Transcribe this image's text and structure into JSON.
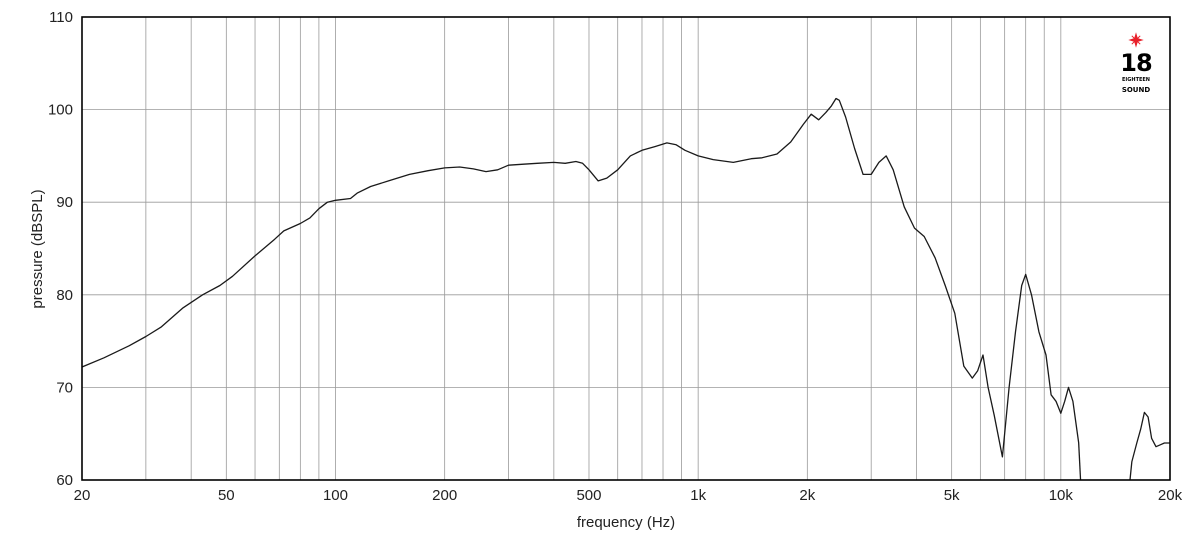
{
  "chart_data": {
    "type": "line",
    "xscale": "log",
    "xlim": [
      20,
      20000
    ],
    "ylim": [
      60,
      110
    ],
    "xlabel": "frequency (Hz)",
    "ylabel": "pressure (dBSPL)",
    "grid": true,
    "x_tick_values": [
      20,
      50,
      100,
      200,
      500,
      1000,
      2000,
      5000,
      10000,
      20000
    ],
    "x_tick_labels": [
      "20",
      "50",
      "100",
      "200",
      "500",
      "1k",
      "2k",
      "5k",
      "10k",
      "20k"
    ],
    "y_tick_values": [
      60,
      70,
      80,
      90,
      100,
      110
    ],
    "y_tick_labels": [
      "60",
      "70",
      "80",
      "90",
      "100",
      "110"
    ],
    "series": [
      {
        "color": "#1a1a1a",
        "x": [
          20,
          23,
          27,
          30,
          33,
          38,
          43,
          48,
          52,
          60,
          68,
          72,
          80,
          85,
          90,
          95,
          100,
          110,
          115,
          125,
          140,
          160,
          180,
          200,
          220,
          240,
          260,
          280,
          300,
          330,
          360,
          400,
          430,
          460,
          480,
          500,
          530,
          560,
          600,
          650,
          700,
          760,
          820,
          870,
          920,
          1000,
          1100,
          1250,
          1400,
          1500,
          1650,
          1800,
          1950,
          2050,
          2150,
          2250,
          2330,
          2400,
          2450,
          2550,
          2700,
          2850,
          3000,
          3150,
          3300,
          3450,
          3700,
          3950,
          4200,
          4500,
          4800,
          5100,
          5400,
          5700,
          5900,
          6100,
          6300,
          6550,
          6900,
          7200,
          7500,
          7800,
          8000,
          8300,
          8700,
          9100,
          9400,
          9700,
          10000,
          10250,
          10500,
          10800,
          11200,
          15700,
          16200,
          16600,
          17000,
          17400,
          17800,
          18300,
          18800,
          19300,
          20000
        ],
        "y": [
          72.2,
          73.2,
          74.5,
          75.5,
          76.5,
          78.6,
          80.0,
          81.0,
          82.0,
          84.2,
          86.0,
          86.9,
          87.7,
          88.3,
          89.3,
          90.0,
          90.2,
          90.4,
          91.0,
          91.7,
          92.3,
          93.0,
          93.4,
          93.7,
          93.8,
          93.6,
          93.3,
          93.5,
          94.0,
          94.1,
          94.2,
          94.3,
          94.2,
          94.4,
          94.2,
          93.5,
          92.3,
          92.6,
          93.5,
          95.0,
          95.6,
          96.0,
          96.4,
          96.2,
          95.6,
          95.0,
          94.6,
          94.3,
          94.7,
          94.8,
          95.2,
          96.5,
          98.4,
          99.5,
          98.9,
          99.7,
          100.4,
          101.2,
          101.0,
          99.2,
          95.8,
          93.0,
          93.0,
          94.3,
          95.0,
          93.5,
          89.5,
          87.2,
          86.3,
          84.0,
          81.0,
          78.0,
          72.3,
          71.0,
          71.8,
          73.5,
          70.0,
          67.0,
          62.5,
          70.0,
          76.0,
          81.0,
          82.2,
          80.0,
          76.0,
          73.5,
          69.2,
          68.5,
          67.2,
          68.5,
          70.0,
          68.5,
          64.0,
          62.0,
          64.0,
          65.5,
          67.3,
          66.8,
          64.5,
          63.6,
          63.8,
          64.0,
          64.0
        ]
      }
    ]
  },
  "logo": {
    "number": "18",
    "line1": "EIGHTEEN",
    "line2": "SOUND",
    "star_color": "#e8202a"
  }
}
